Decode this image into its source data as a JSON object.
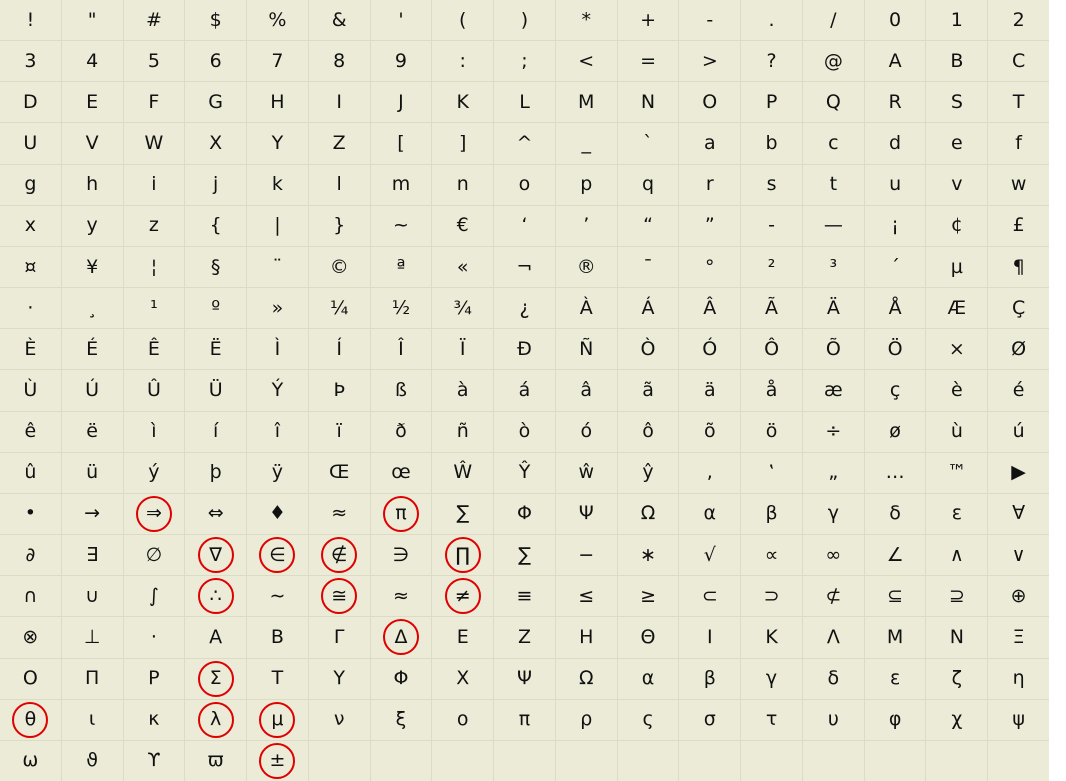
{
  "columns": 17,
  "highlight_color": "#e00000",
  "rows": [
    [
      "!",
      "\"",
      "#",
      "$",
      "%",
      "&",
      "'",
      "(",
      ")",
      "*",
      "+",
      "-",
      ".",
      "/",
      "0",
      "1",
      "2"
    ],
    [
      "3",
      "4",
      "5",
      "6",
      "7",
      "8",
      "9",
      ":",
      ";",
      "<",
      "=",
      ">",
      "?",
      "@",
      "A",
      "B",
      "C"
    ],
    [
      "D",
      "E",
      "F",
      "G",
      "H",
      "I",
      "J",
      "K",
      "L",
      "M",
      "N",
      "O",
      "P",
      "Q",
      "R",
      "S",
      "T"
    ],
    [
      "U",
      "V",
      "W",
      "X",
      "Y",
      "Z",
      "[",
      "]",
      "^",
      "_",
      "`",
      "a",
      "b",
      "c",
      "d",
      "e",
      "f"
    ],
    [
      "g",
      "h",
      "i",
      "j",
      "k",
      "l",
      "m",
      "n",
      "o",
      "p",
      "q",
      "r",
      "s",
      "t",
      "u",
      "v",
      "w"
    ],
    [
      "x",
      "y",
      "z",
      "{",
      "|",
      "}",
      "~",
      "€",
      "‘",
      "’",
      "“",
      "”",
      "-",
      "—",
      "¡",
      "¢",
      "£"
    ],
    [
      "¤",
      "¥",
      "¦",
      "§",
      "¨",
      "©",
      "ª",
      "«",
      "¬",
      "®",
      "¯",
      "°",
      "²",
      "³",
      "´",
      "µ",
      "¶"
    ],
    [
      "·",
      "¸",
      "¹",
      "º",
      "»",
      "¼",
      "½",
      "¾",
      "¿",
      "À",
      "Á",
      "Â",
      "Ã",
      "Ä",
      "Å",
      "Æ",
      "Ç"
    ],
    [
      "È",
      "É",
      "Ê",
      "Ë",
      "Ì",
      "Í",
      "Î",
      "Ï",
      "Ð",
      "Ñ",
      "Ò",
      "Ó",
      "Ô",
      "Õ",
      "Ö",
      "×",
      "Ø"
    ],
    [
      "Ù",
      "Ú",
      "Û",
      "Ü",
      "Ý",
      "Þ",
      "ß",
      "à",
      "á",
      "â",
      "ã",
      "ä",
      "å",
      "æ",
      "ç",
      "è",
      "é"
    ],
    [
      "ê",
      "ë",
      "ì",
      "í",
      "î",
      "ï",
      "ð",
      "ñ",
      "ò",
      "ó",
      "ô",
      "õ",
      "ö",
      "÷",
      "ø",
      "ù",
      "ú"
    ],
    [
      "û",
      "ü",
      "ý",
      "þ",
      "ÿ",
      "Œ",
      "œ",
      "Ŵ",
      "Ŷ",
      "ŵ",
      "ŷ",
      ",",
      "‛",
      "„",
      "…",
      "™",
      "▶"
    ],
    [
      "•",
      "→",
      "⇒",
      "⇔",
      "♦",
      "≈",
      "π",
      "∑",
      "Φ",
      "Ψ",
      "Ω",
      "α",
      "β",
      "γ",
      "δ",
      "ε",
      "∀"
    ],
    [
      "∂",
      "∃",
      "∅",
      "∇",
      "∈",
      "∉",
      "∋",
      "∏",
      "∑",
      "−",
      "∗",
      "√",
      "∝",
      "∞",
      "∠",
      "∧",
      "∨"
    ],
    [
      "∩",
      "∪",
      "∫",
      "∴",
      "∼",
      "≅",
      "≈",
      "≠",
      "≡",
      "≤",
      "≥",
      "⊂",
      "⊃",
      "⊄",
      "⊆",
      "⊇",
      "⊕"
    ],
    [
      "⊗",
      "⊥",
      "⋅",
      "Α",
      "Β",
      "Γ",
      "Δ",
      "Ε",
      "Ζ",
      "Η",
      "Θ",
      "Ι",
      "Κ",
      "Λ",
      "Μ",
      "Ν",
      "Ξ"
    ],
    [
      "Ο",
      "Π",
      "Ρ",
      "Σ",
      "Τ",
      "Υ",
      "Φ",
      "Χ",
      "Ψ",
      "Ω",
      "α",
      "β",
      "γ",
      "δ",
      "ε",
      "ζ",
      "η"
    ],
    [
      "θ",
      "ι",
      "κ",
      "λ",
      "μ",
      "ν",
      "ξ",
      "ο",
      "π",
      "ρ",
      "ς",
      "σ",
      "τ",
      "υ",
      "φ",
      "χ",
      "ψ"
    ],
    [
      "ω",
      "ϑ",
      "ϒ",
      "ϖ",
      "±",
      "",
      "",
      "",
      "",
      "",
      "",
      "",
      "",
      "",
      "",
      "",
      ""
    ]
  ],
  "highlighted": [
    "12.2",
    "12.6",
    "13.3",
    "13.4",
    "13.5",
    "13.7",
    "14.3",
    "14.5",
    "14.7",
    "15.6",
    "16.3",
    "17.0",
    "17.3",
    "17.4",
    "18.4"
  ]
}
